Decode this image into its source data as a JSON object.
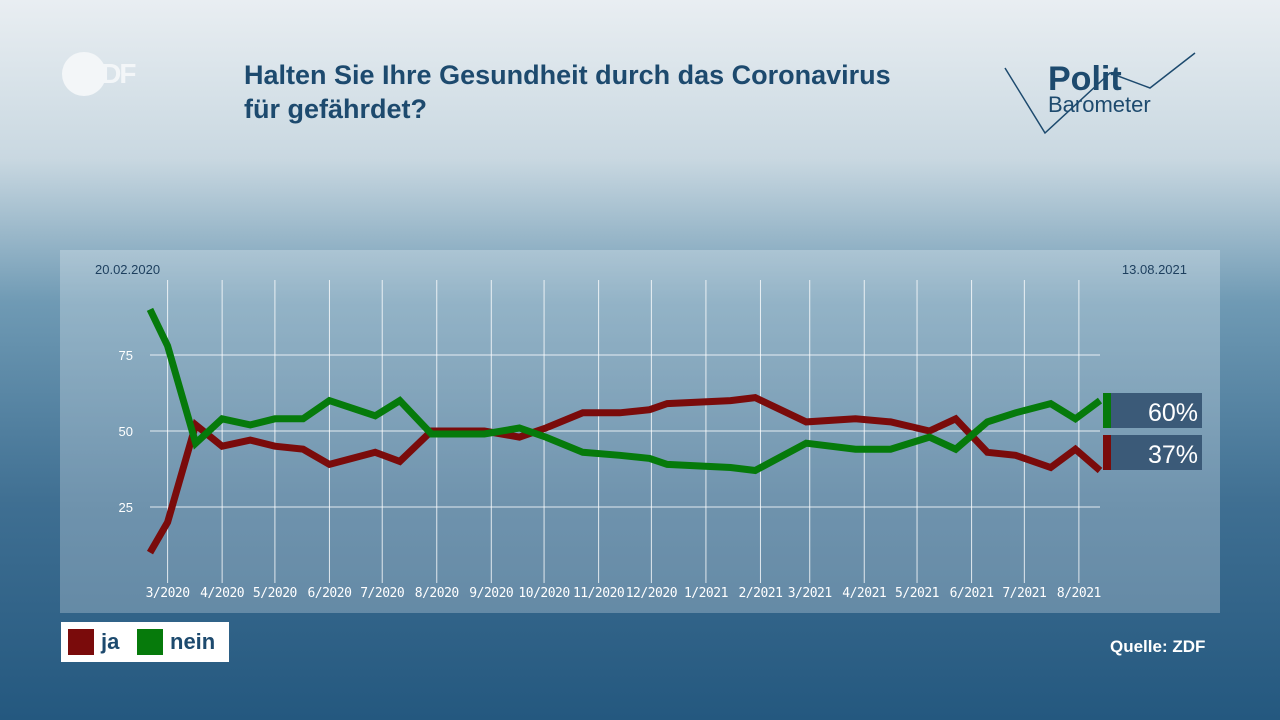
{
  "header": {
    "title_line1": "Halten Sie Ihre Gesundheit durch das Coronavirus",
    "title_line2": "für gefährdet?",
    "logo_zdf": "ZDF",
    "logo_polit": "Polit",
    "logo_barometer": "Barometer"
  },
  "legend": [
    {
      "label": "ja",
      "color": "#7a0b0b"
    },
    {
      "label": "nein",
      "color": "#067a0b"
    }
  ],
  "source": "Quelle: ZDF",
  "chart_data": {
    "type": "line",
    "start_label": "20.02.2020",
    "end_label": "13.08.2021",
    "ylim": [
      0,
      100
    ],
    "yticks": [
      25,
      50,
      75
    ],
    "xlim": [
      "2020-02-20",
      "2021-08-13"
    ],
    "xticks": [
      {
        "date": "2020-03-01",
        "label": "3/2020"
      },
      {
        "date": "2020-04-01",
        "label": "4/2020"
      },
      {
        "date": "2020-05-01",
        "label": "5/2020"
      },
      {
        "date": "2020-06-01",
        "label": "6/2020"
      },
      {
        "date": "2020-07-01",
        "label": "7/2020"
      },
      {
        "date": "2020-08-01",
        "label": "8/2020"
      },
      {
        "date": "2020-09-01",
        "label": "9/2020"
      },
      {
        "date": "2020-10-01",
        "label": "10/2020"
      },
      {
        "date": "2020-11-01",
        "label": "11/2020"
      },
      {
        "date": "2020-12-01",
        "label": "12/2020"
      },
      {
        "date": "2021-01-01",
        "label": "1/2021"
      },
      {
        "date": "2021-02-01",
        "label": "2/2021"
      },
      {
        "date": "2021-03-01",
        "label": "3/2021"
      },
      {
        "date": "2021-04-01",
        "label": "4/2021"
      },
      {
        "date": "2021-05-01",
        "label": "5/2021"
      },
      {
        "date": "2021-06-01",
        "label": "6/2021"
      },
      {
        "date": "2021-07-01",
        "label": "7/2021"
      },
      {
        "date": "2021-08-01",
        "label": "8/2021"
      }
    ],
    "grid": true,
    "x": [
      "2020-02-20",
      "2020-03-01",
      "2020-03-17",
      "2020-04-01",
      "2020-04-17",
      "2020-05-01",
      "2020-05-17",
      "2020-06-01",
      "2020-06-27",
      "2020-07-11",
      "2020-07-29",
      "2020-08-28",
      "2020-09-17",
      "2020-10-02",
      "2020-10-23",
      "2020-11-13",
      "2020-11-30",
      "2020-12-10",
      "2021-01-15",
      "2021-01-29",
      "2021-02-27",
      "2021-03-27",
      "2021-04-16",
      "2021-05-08",
      "2021-05-23",
      "2021-06-10",
      "2021-06-26",
      "2021-07-16",
      "2021-07-30",
      "2021-08-13"
    ],
    "series": [
      {
        "name": "ja",
        "color": "#7a0b0b",
        "values": [
          10,
          20,
          52,
          45,
          47,
          45,
          44,
          39,
          43,
          40,
          50,
          50,
          48,
          51,
          56,
          56,
          57,
          59,
          60,
          61,
          53,
          54,
          53,
          50,
          54,
          43,
          42,
          38,
          44,
          37
        ],
        "end_label": "37%"
      },
      {
        "name": "nein",
        "color": "#067a0b",
        "values": [
          90,
          78,
          46,
          54,
          52,
          54,
          54,
          60,
          55,
          60,
          49,
          49,
          51,
          48,
          43,
          42,
          41,
          39,
          38,
          37,
          46,
          44,
          44,
          48,
          44,
          53,
          56,
          59,
          54,
          60
        ],
        "end_label": "60%"
      }
    ]
  }
}
